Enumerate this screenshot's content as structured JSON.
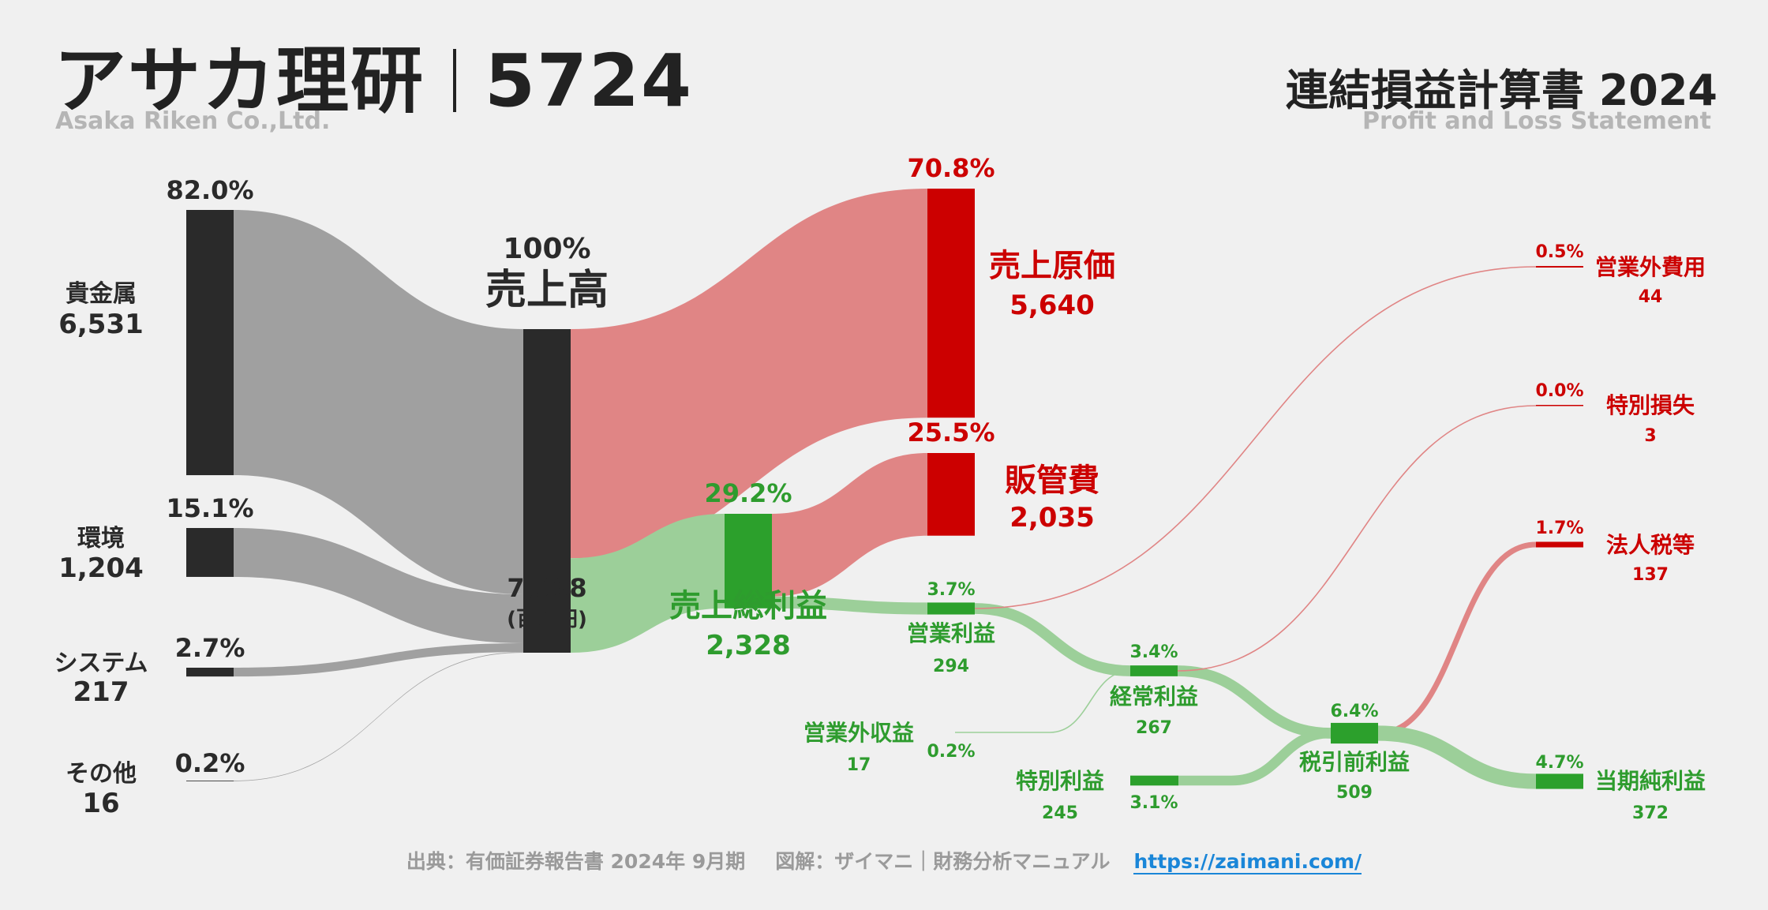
{
  "header": {
    "company": "アサカ理研",
    "code": "5724",
    "company_en": "Asaka Riken Co.,Ltd.",
    "statement": "連結損益計算書 2024",
    "statement_en": "Profit and Loss Statement"
  },
  "footer": {
    "source": "出典：有価証券報告書 2024年 9月期",
    "credit": "図解：ザイマニ｜財務分析マニュアル",
    "url": "https://zaimani.com/"
  },
  "colors": {
    "dark": "#2a2a2a",
    "gray_flow": "#a0a0a0",
    "red": "#cc0000",
    "red_flow": "#e08585",
    "green": "#2ca02c",
    "green_label": "#2e9c2e",
    "green_flow": "#9ccf99"
  },
  "chart_data": {
    "type": "sankey",
    "unit": "(百万円)",
    "revenue": {
      "label": "売上高",
      "pct": "100%",
      "value": "7,968"
    },
    "segments": [
      {
        "name": "貴金属",
        "value": "6,531",
        "pct": "82.0%",
        "amount": 6531
      },
      {
        "name": "環境",
        "value": "1,204",
        "pct": "15.1%",
        "amount": 1204
      },
      {
        "name": "システム",
        "value": "217",
        "pct": "2.7%",
        "amount": 217
      },
      {
        "name": "その他",
        "value": "16",
        "pct": "0.2%",
        "amount": 16
      }
    ],
    "cost_of_sales": {
      "label": "売上原価",
      "value": "5,640",
      "pct": "70.8%",
      "amount": 5640
    },
    "gross_profit": {
      "label": "売上総利益",
      "value": "2,328",
      "pct": "29.2%",
      "amount": 2328
    },
    "sga": {
      "label": "販管費",
      "value": "2,035",
      "pct": "25.5%",
      "amount": 2035
    },
    "operating_income": {
      "label": "営業利益",
      "value": "294",
      "pct": "3.7%",
      "amount": 294
    },
    "non_operating_expense": {
      "label": "営業外費用",
      "value": "44",
      "pct": "0.5%",
      "amount": 44
    },
    "non_operating_income": {
      "label": "営業外収益",
      "value": "17",
      "pct": "0.2%",
      "amount": 17
    },
    "ordinary_income": {
      "label": "経常利益",
      "value": "267",
      "pct": "3.4%",
      "amount": 267
    },
    "extraordinary_loss": {
      "label": "特別損失",
      "value": "3",
      "pct": "0.0%",
      "amount": 3
    },
    "extraordinary_income": {
      "label": "特別利益",
      "value": "245",
      "pct": "3.1%",
      "amount": 245
    },
    "pretax_income": {
      "label": "税引前利益",
      "value": "509",
      "pct": "6.4%",
      "amount": 509
    },
    "income_taxes": {
      "label": "法人税等",
      "value": "137",
      "pct": "1.7%",
      "amount": 137
    },
    "net_income": {
      "label": "当期純利益",
      "value": "372",
      "pct": "4.7%",
      "amount": 372
    }
  }
}
